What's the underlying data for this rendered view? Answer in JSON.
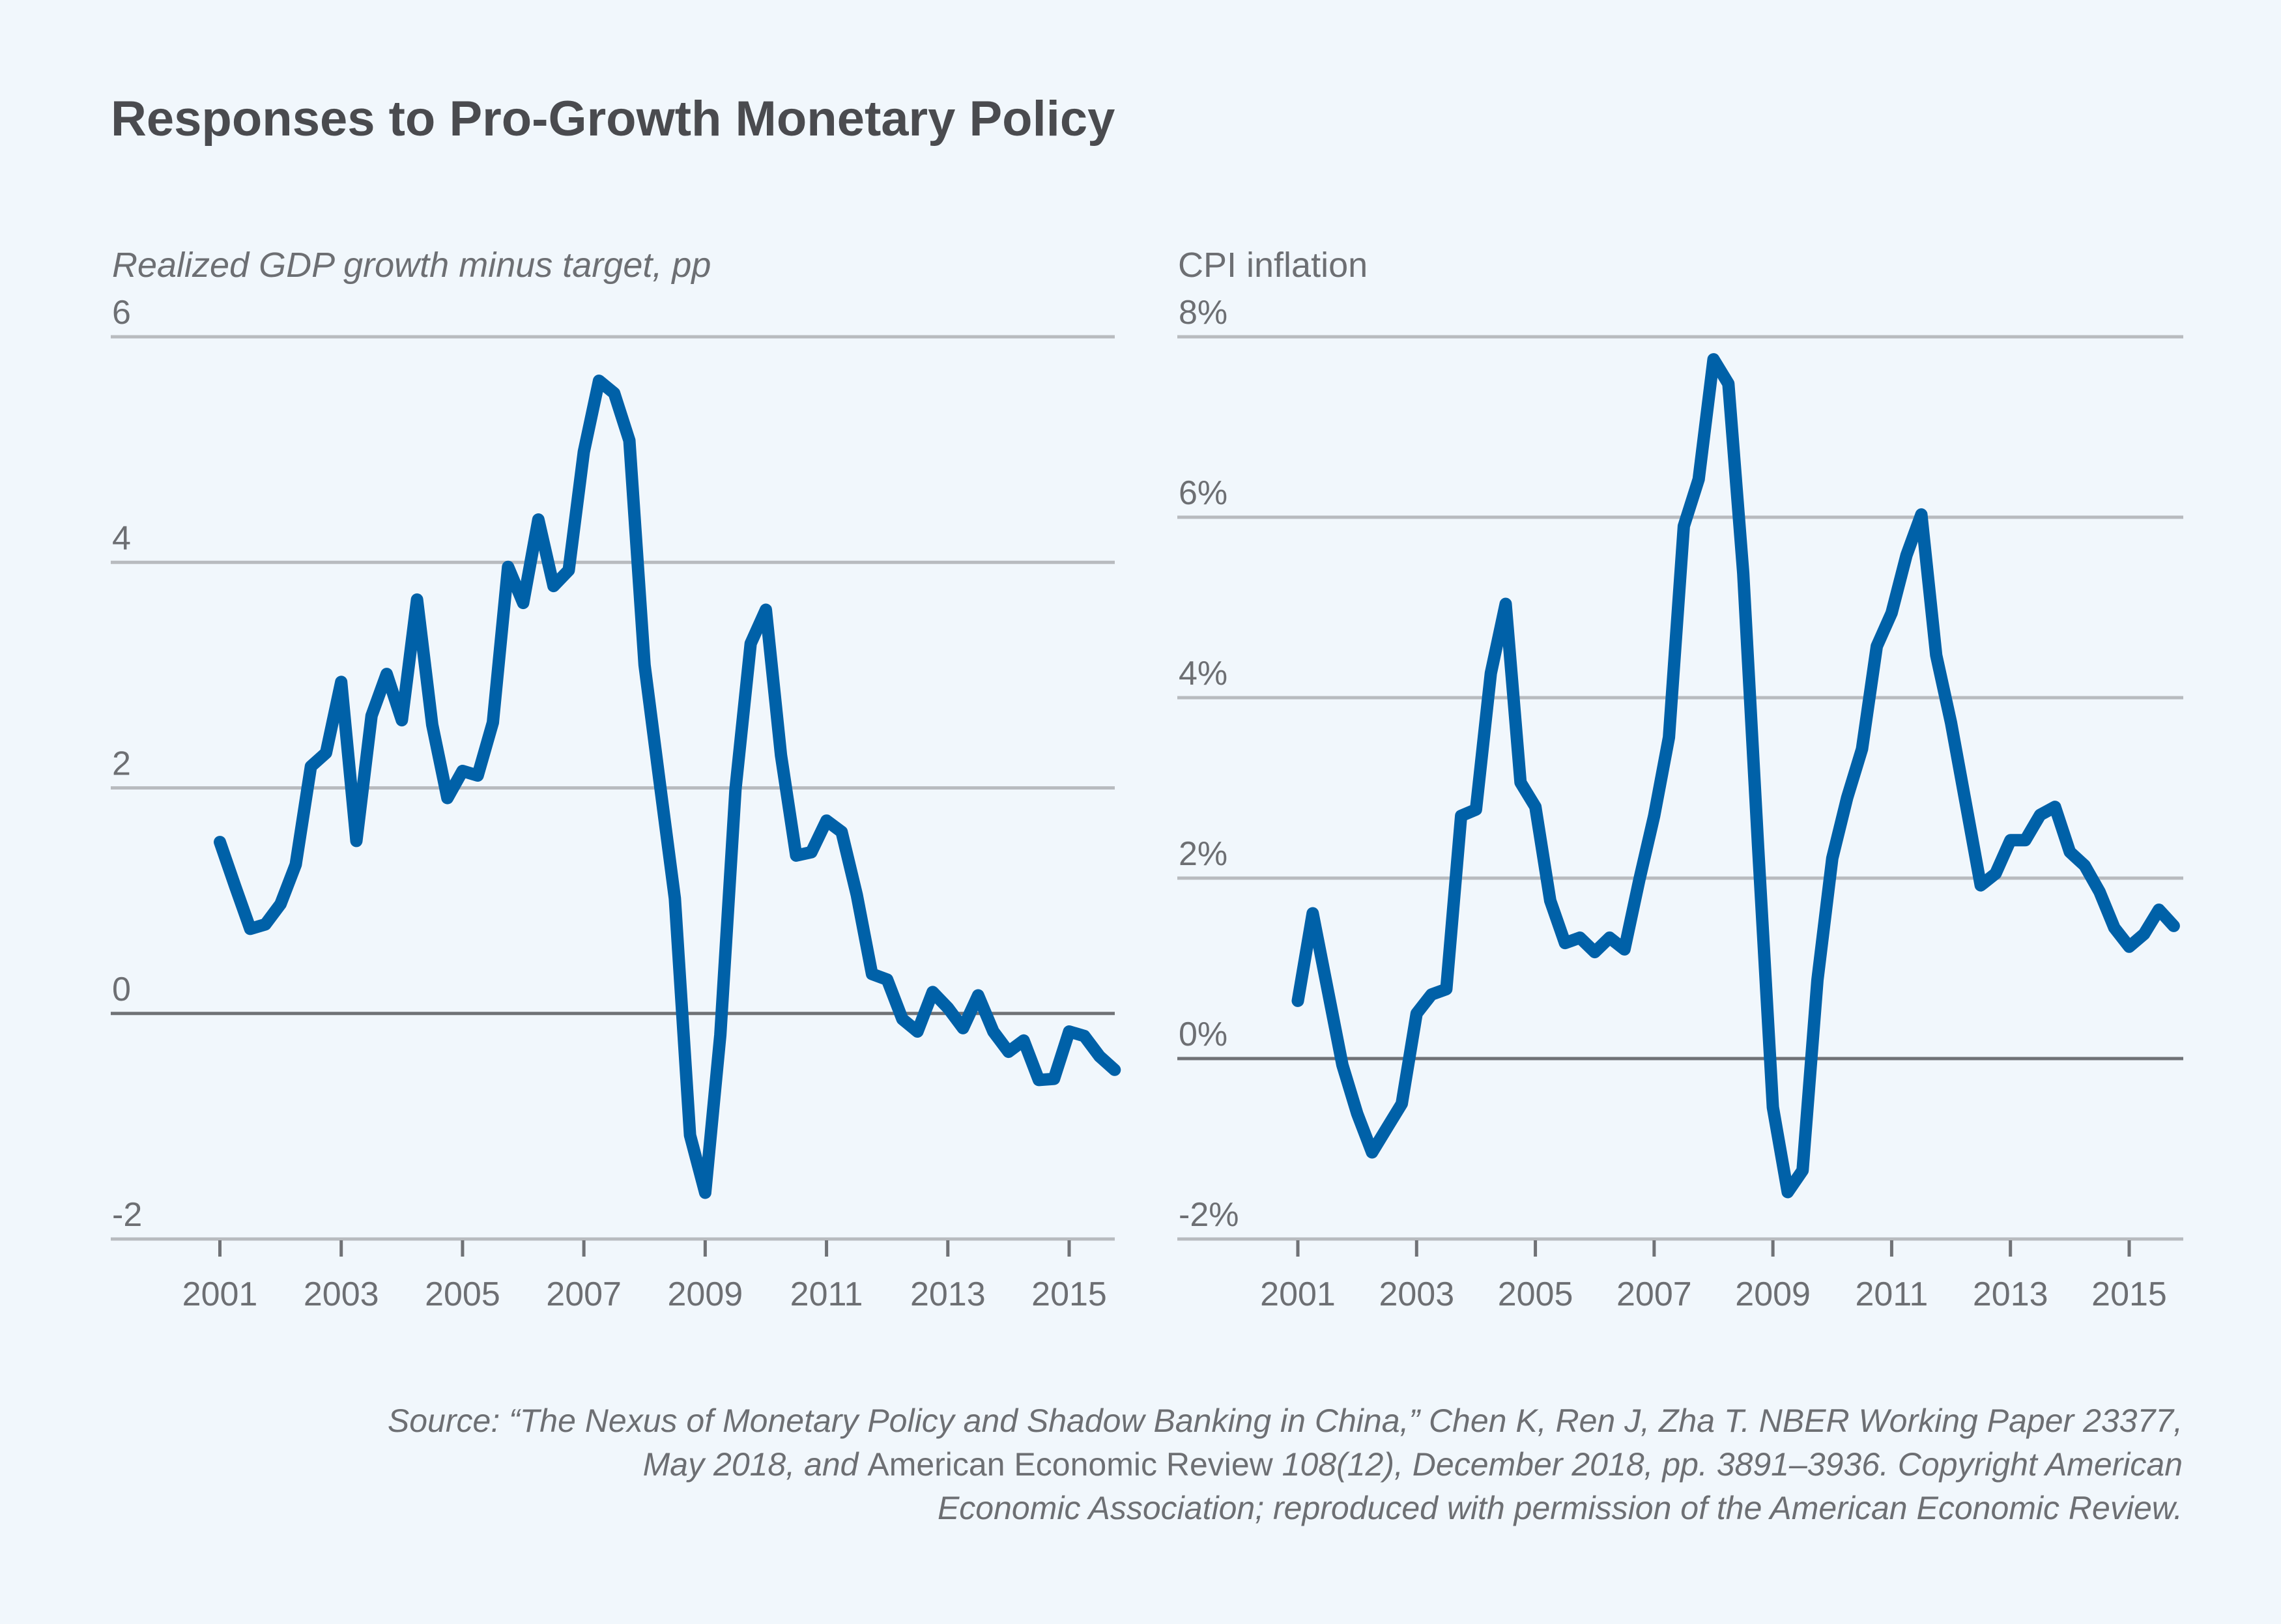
{
  "title": "Responses to Pro-Growth Monetary Policy",
  "source": {
    "lines": [
      [
        {
          "text": "Source: “The Nexus of Monetary Policy and Shadow Banking in China,” Chen K, Ren J, Zha T. NBER Working Paper 23377,",
          "italic": true
        }
      ],
      [
        {
          "text": "May 2018, and ",
          "italic": true
        },
        {
          "text": "American Economic Review ",
          "italic": false
        },
        {
          "text": "108(12), December 2018, pp. 3891–3936. Copyright American",
          "italic": true
        }
      ],
      [
        {
          "text": "Economic Association; reproduced with permission of the American Economic Review.",
          "italic": true
        }
      ]
    ]
  },
  "colors": {
    "background": "#f1f7fc",
    "line": "#0061a8",
    "grid": "#b8bbbf",
    "zero_line": "#707276",
    "text": "#6d6f73",
    "title": "#4a4b4f"
  },
  "chart_data": [
    {
      "type": "line",
      "id": "gdp",
      "title": "",
      "ylabel": "Realized GDP growth minus target, pp",
      "ylabel_italic": true,
      "xlabel": "",
      "ylim": [
        -2,
        6
      ],
      "yticks": [
        -2,
        0,
        2,
        4,
        6
      ],
      "ytick_labels": [
        "-2",
        "0",
        "2",
        "4",
        "6"
      ],
      "xlim": [
        2000.0,
        2015.85
      ],
      "xticks": [
        2001,
        2003,
        2005,
        2007,
        2009,
        2011,
        2013,
        2015
      ],
      "xtick_labels": [
        "2001",
        "2003",
        "2005",
        "2007",
        "2009",
        "2011",
        "2013",
        "2015"
      ],
      "grid": true,
      "legend": "none",
      "x": [
        2001.0,
        2001.25,
        2001.5,
        2001.75,
        2002.0,
        2002.25,
        2002.5,
        2002.75,
        2003.0,
        2003.25,
        2003.5,
        2003.75,
        2004.0,
        2004.25,
        2004.5,
        2004.75,
        2005.0,
        2005.25,
        2005.5,
        2005.75,
        2006.0,
        2006.25,
        2006.5,
        2006.75,
        2007.0,
        2007.25,
        2007.5,
        2007.75,
        2008.0,
        2008.25,
        2008.5,
        2008.75,
        2009.0,
        2009.25,
        2009.5,
        2009.75,
        2010.0,
        2010.25,
        2010.5,
        2010.75,
        2011.0,
        2011.25,
        2011.5,
        2011.75,
        2012.0,
        2012.25,
        2012.5,
        2012.75,
        2013.0,
        2013.25,
        2013.5,
        2013.75,
        2014.0,
        2014.25,
        2014.5,
        2014.75,
        2015.0,
        2015.25,
        2015.5,
        2015.75
      ],
      "series": [
        {
          "name": "Realized GDP growth minus target",
          "values": [
            1.52,
            1.13,
            0.75,
            0.79,
            0.97,
            1.32,
            2.19,
            2.31,
            2.94,
            1.53,
            2.64,
            3.01,
            2.6,
            3.67,
            2.56,
            1.91,
            2.15,
            2.11,
            2.58,
            3.96,
            3.64,
            4.38,
            3.79,
            3.93,
            4.98,
            5.61,
            5.5,
            5.08,
            3.09,
            2.05,
            1.02,
            -1.08,
            -1.59,
            -0.19,
            1.99,
            3.28,
            3.58,
            2.29,
            1.4,
            1.43,
            1.71,
            1.61,
            1.05,
            0.35,
            0.3,
            -0.05,
            -0.16,
            0.19,
            0.05,
            -0.13,
            0.16,
            -0.16,
            -0.34,
            -0.24,
            -0.59,
            -0.58,
            -0.16,
            -0.2,
            -0.38,
            -0.5
          ]
        }
      ]
    },
    {
      "type": "line",
      "id": "cpi",
      "title": "",
      "ylabel": "CPI inflation",
      "ylabel_italic": false,
      "xlabel": "",
      "ylim": [
        -2,
        8
      ],
      "yticks": [
        -2,
        0,
        2,
        4,
        6,
        8
      ],
      "ytick_labels": [
        "-2%",
        "0%",
        "2%",
        "4%",
        "6%",
        "8%"
      ],
      "xlim": [
        2000.0,
        2015.95
      ],
      "xticks": [
        2001,
        2003,
        2005,
        2007,
        2009,
        2011,
        2013,
        2015
      ],
      "xtick_labels": [
        "2001",
        "2003",
        "2005",
        "2007",
        "2009",
        "2011",
        "2013",
        "2015"
      ],
      "grid": true,
      "legend": "none",
      "x": [
        2001.0,
        2001.25,
        2001.5,
        2001.75,
        2002.0,
        2002.25,
        2002.5,
        2002.75,
        2003.0,
        2003.25,
        2003.5,
        2003.75,
        2004.0,
        2004.25,
        2004.5,
        2004.75,
        2005.0,
        2005.25,
        2005.5,
        2005.75,
        2006.0,
        2006.25,
        2006.5,
        2006.75,
        2007.0,
        2007.25,
        2007.5,
        2007.75,
        2008.0,
        2008.25,
        2008.5,
        2008.75,
        2009.0,
        2009.25,
        2009.5,
        2009.75,
        2010.0,
        2010.25,
        2010.5,
        2010.75,
        2011.0,
        2011.25,
        2011.5,
        2011.75,
        2012.0,
        2012.25,
        2012.5,
        2012.75,
        2013.0,
        2013.25,
        2013.5,
        2013.75,
        2014.0,
        2014.25,
        2014.5,
        2014.75,
        2015.0,
        2015.25,
        2015.5,
        2015.75
      ],
      "series": [
        {
          "name": "CPI inflation (%)",
          "values": [
            0.64,
            1.61,
            0.77,
            -0.07,
            -0.61,
            -1.04,
            -0.77,
            -0.5,
            0.5,
            0.71,
            0.77,
            2.69,
            2.76,
            4.27,
            5.04,
            3.06,
            2.79,
            1.75,
            1.28,
            1.34,
            1.18,
            1.34,
            1.21,
            1.98,
            2.69,
            3.56,
            5.9,
            6.42,
            7.75,
            7.48,
            5.38,
            2.35,
            -0.54,
            -1.48,
            -1.24,
            0.87,
            2.22,
            2.89,
            3.43,
            4.57,
            4.94,
            5.58,
            6.03,
            4.47,
            3.72,
            2.82,
            1.92,
            2.05,
            2.42,
            2.42,
            2.7,
            2.79,
            2.29,
            2.14,
            1.85,
            1.45,
            1.24,
            1.38,
            1.65,
            1.47
          ]
        }
      ]
    }
  ]
}
